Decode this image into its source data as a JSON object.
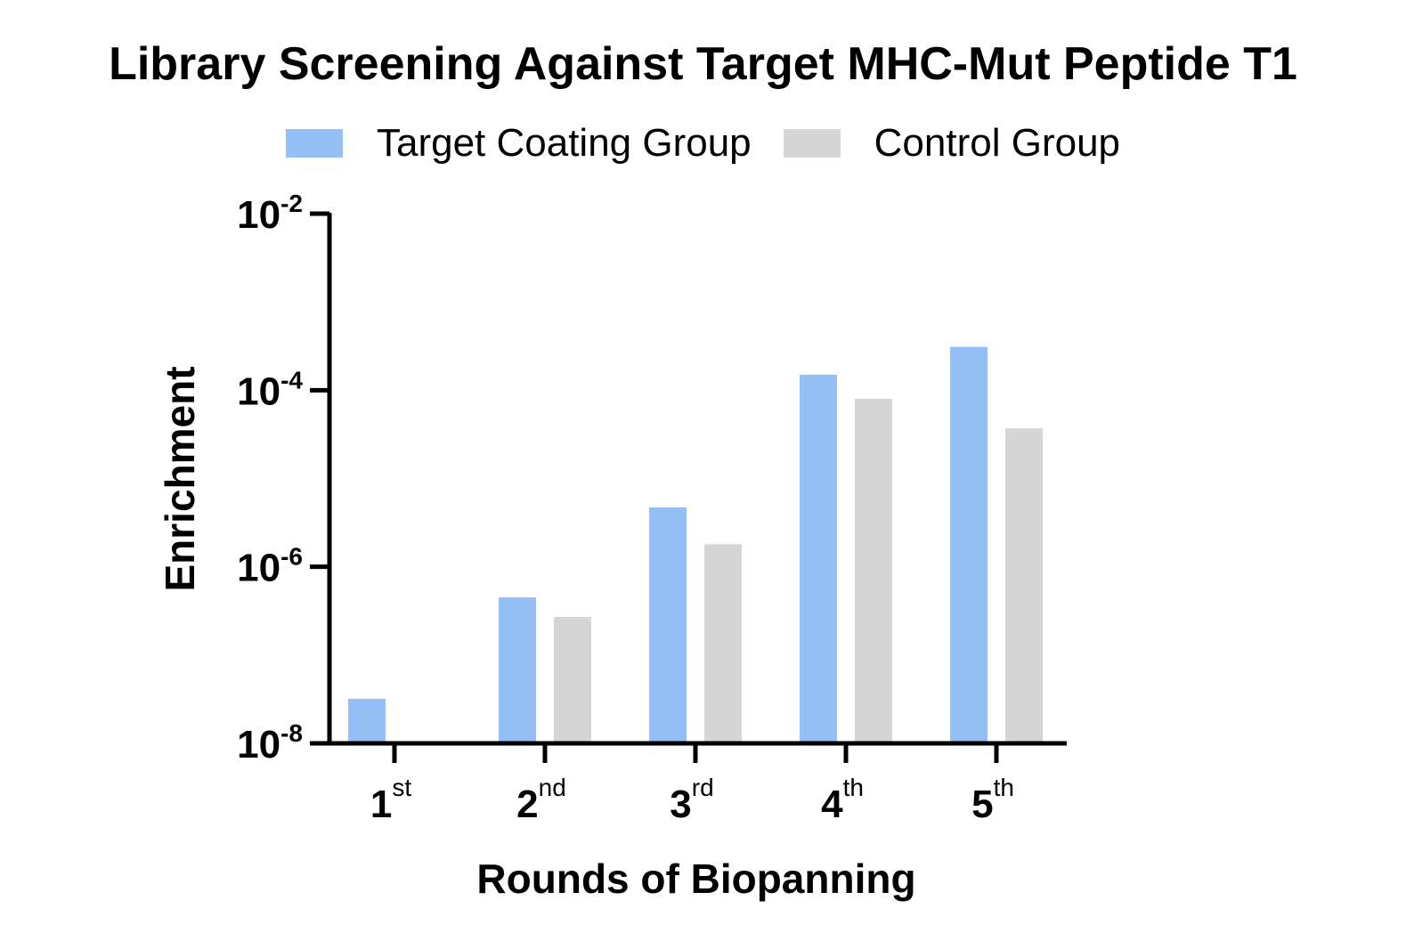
{
  "chart_data": {
    "type": "bar",
    "title": "Library Screening Against Target MHC-Mut Peptide T1",
    "xlabel": "Rounds of Biopanning",
    "ylabel": "Enrichment",
    "y_scale": "log",
    "ylim": [
      1e-08,
      0.01
    ],
    "yticks": [
      {
        "base": "10",
        "exp": "-2",
        "value": 0.01
      },
      {
        "base": "10",
        "exp": "-4",
        "value": 0.0001
      },
      {
        "base": "10",
        "exp": "-6",
        "value": 1e-06
      },
      {
        "base": "10",
        "exp": "-8",
        "value": 1e-08
      }
    ],
    "categories": [
      {
        "num": "1",
        "suffix": "st"
      },
      {
        "num": "2",
        "suffix": "nd"
      },
      {
        "num": "3",
        "suffix": "rd"
      },
      {
        "num": "4",
        "suffix": "th"
      },
      {
        "num": "5",
        "suffix": "th"
      }
    ],
    "series": [
      {
        "name": "Target Coating Group",
        "color": "#94c0f7",
        "values": [
          3.2e-08,
          4.5e-07,
          4.7e-06,
          0.00015,
          0.00031
        ]
      },
      {
        "name": "Control Group",
        "color": "#d6d6d6",
        "values": [
          null,
          2.7e-07,
          1.8e-06,
          8e-05,
          3.7e-05
        ]
      }
    ],
    "legend_position": "top-center",
    "grid": false
  }
}
